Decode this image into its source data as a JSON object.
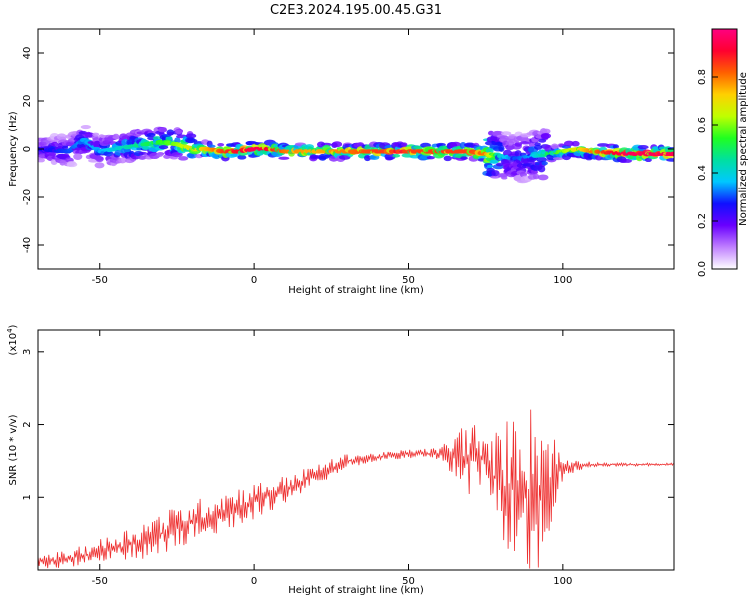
{
  "title": "C2E3.2024.195.00.45.G31",
  "chart_data": [
    {
      "type": "heatmap",
      "title": "C2E3.2024.195.00.45.G31",
      "xlabel": "Height of straight line (km)",
      "ylabel": "Frequency (Hz)",
      "xlim": [
        -70,
        136
      ],
      "ylim": [
        -50,
        50
      ],
      "xticks": [
        -50,
        0,
        50,
        100
      ],
      "xtick_labels": [
        "-50",
        "0",
        "50",
        "100"
      ],
      "yticks": [
        -40,
        -20,
        0,
        20,
        40
      ],
      "ytick_labels": [
        "-40",
        "-20",
        "0",
        "20",
        "40"
      ],
      "colorbar": {
        "label": "Normalized spectral amplitude",
        "range": [
          0,
          1
        ],
        "ticks": [
          0.0,
          0.2,
          0.4,
          0.6,
          0.8
        ],
        "tick_labels": [
          "0.0",
          "0.2",
          "0.4",
          "0.6",
          "0.8"
        ],
        "colormap": [
          "#ffffff",
          "#c080ff",
          "#6a00ff",
          "#1010ff",
          "#00c8ff",
          "#00e0a0",
          "#20ff20",
          "#c0ff00",
          "#ffd000",
          "#ff6000",
          "#ff0030",
          "#ff0080"
        ]
      },
      "ridge": {
        "x": [
          -70,
          -60,
          -55,
          -50,
          -45,
          -40,
          -35,
          -30,
          -25,
          -20,
          -15,
          -10,
          -5,
          0,
          5,
          10,
          20,
          30,
          40,
          50,
          60,
          70,
          75,
          80,
          85,
          90,
          95,
          100,
          105,
          110,
          120,
          130,
          136
        ],
        "y": [
          0,
          -1,
          4,
          -1,
          0,
          1,
          2,
          3,
          2,
          0,
          0,
          -1,
          -1,
          0,
          0,
          -1,
          -1,
          -1,
          -1,
          -1,
          -1,
          -1,
          -2,
          -3,
          -4,
          -3,
          -2,
          -1,
          0,
          -1,
          -2,
          -2,
          -2
        ],
        "amplitude": [
          0.25,
          0.3,
          0.35,
          0.35,
          0.4,
          0.45,
          0.5,
          0.55,
          0.6,
          0.7,
          0.75,
          0.85,
          0.9,
          0.95,
          0.9,
          0.8,
          0.75,
          0.8,
          0.85,
          0.85,
          0.85,
          0.85,
          0.8,
          0.4,
          0.3,
          0.35,
          0.5,
          0.6,
          0.7,
          0.8,
          0.95,
          0.95,
          0.95
        ]
      }
    },
    {
      "type": "line",
      "xlabel": "Height of straight line (km)",
      "ylabel": "SNR (10 * v/v)",
      "y_multiplier": "(x10",
      "y_multiplier_exp": "4",
      "y_multiplier_close": ")",
      "xlim": [
        -70,
        136
      ],
      "ylim": [
        0,
        3.3
      ],
      "xticks": [
        -50,
        0,
        50,
        100
      ],
      "xtick_labels": [
        "-50",
        "0",
        "50",
        "100"
      ],
      "yticks": [
        1,
        2,
        3
      ],
      "ytick_labels": [
        "1",
        "2",
        "3"
      ],
      "color": "#ee3030",
      "series": [
        {
          "envelope_x": [
            -70,
            -60,
            -50,
            -40,
            -30,
            -20,
            -10,
            0,
            10,
            20,
            30,
            40,
            50,
            60,
            65,
            70,
            75,
            80,
            85,
            90,
            95,
            100,
            105,
            110,
            120,
            130,
            136
          ],
          "mean": [
            0.12,
            0.15,
            0.25,
            0.35,
            0.5,
            0.65,
            0.8,
            0.95,
            1.1,
            1.3,
            1.5,
            1.55,
            1.6,
            1.6,
            1.55,
            1.55,
            1.5,
            1.1,
            1.2,
            1.0,
            1.2,
            1.4,
            1.45,
            1.45,
            1.45,
            1.45,
            1.45
          ],
          "spread": [
            0.1,
            0.12,
            0.18,
            0.25,
            0.3,
            0.3,
            0.3,
            0.25,
            0.2,
            0.15,
            0.1,
            0.06,
            0.06,
            0.08,
            0.35,
            0.6,
            0.25,
            0.9,
            1.0,
            1.3,
            0.9,
            0.15,
            0.08,
            0.03,
            0.02,
            0.02,
            0.02
          ]
        }
      ]
    }
  ]
}
